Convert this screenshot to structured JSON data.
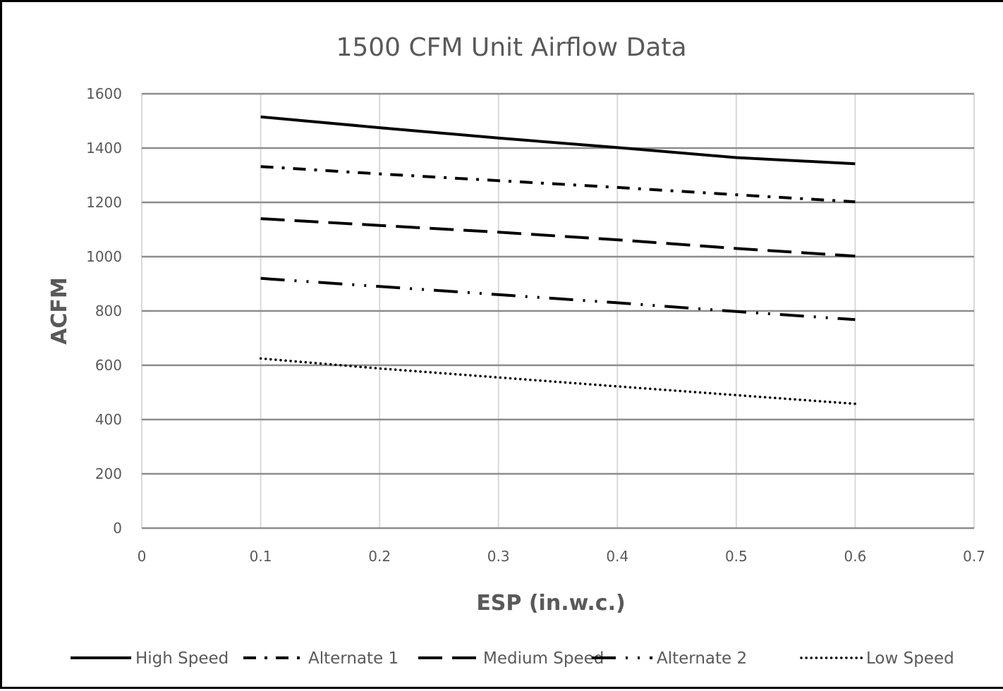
{
  "chart_data": {
    "type": "line",
    "title": "1500 CFM Unit Airflow Data",
    "xlabel": "ESP (in.w.c.)",
    "ylabel": "ACFM",
    "xlim": [
      0,
      0.7
    ],
    "ylim": [
      0,
      1600
    ],
    "x_ticks": [
      "0",
      "0.1",
      "0.2",
      "0.3",
      "0.4",
      "0.5",
      "0.6",
      "0.7"
    ],
    "y_ticks": [
      "0",
      "200",
      "400",
      "600",
      "800",
      "1000",
      "1200",
      "1400",
      "1600"
    ],
    "grid": true,
    "legend_position": "bottom",
    "series": [
      {
        "name": "High Speed",
        "dash": "solid",
        "x": [
          0.1,
          0.2,
          0.3,
          0.4,
          0.5,
          0.6
        ],
        "y": [
          1515,
          1475,
          1437,
          1402,
          1365,
          1342
        ]
      },
      {
        "name": "Alternate 1",
        "dash": "dash-dot",
        "x": [
          0.1,
          0.2,
          0.3,
          0.4,
          0.5,
          0.6
        ],
        "y": [
          1332,
          1305,
          1280,
          1255,
          1228,
          1202
        ]
      },
      {
        "name": "Medium Speed",
        "dash": "long-dash",
        "x": [
          0.1,
          0.2,
          0.3,
          0.4,
          0.5,
          0.6
        ],
        "y": [
          1140,
          1115,
          1090,
          1062,
          1030,
          1002
        ]
      },
      {
        "name": "Alternate 2",
        "dash": "long-dash-dot-dot",
        "x": [
          0.1,
          0.2,
          0.3,
          0.4,
          0.5,
          0.6
        ],
        "y": [
          920,
          890,
          860,
          830,
          798,
          768
        ]
      },
      {
        "name": "Low Speed",
        "dash": "dotted",
        "x": [
          0.1,
          0.2,
          0.3,
          0.4,
          0.5,
          0.6
        ],
        "y": [
          625,
          588,
          555,
          522,
          490,
          458
        ]
      }
    ]
  }
}
